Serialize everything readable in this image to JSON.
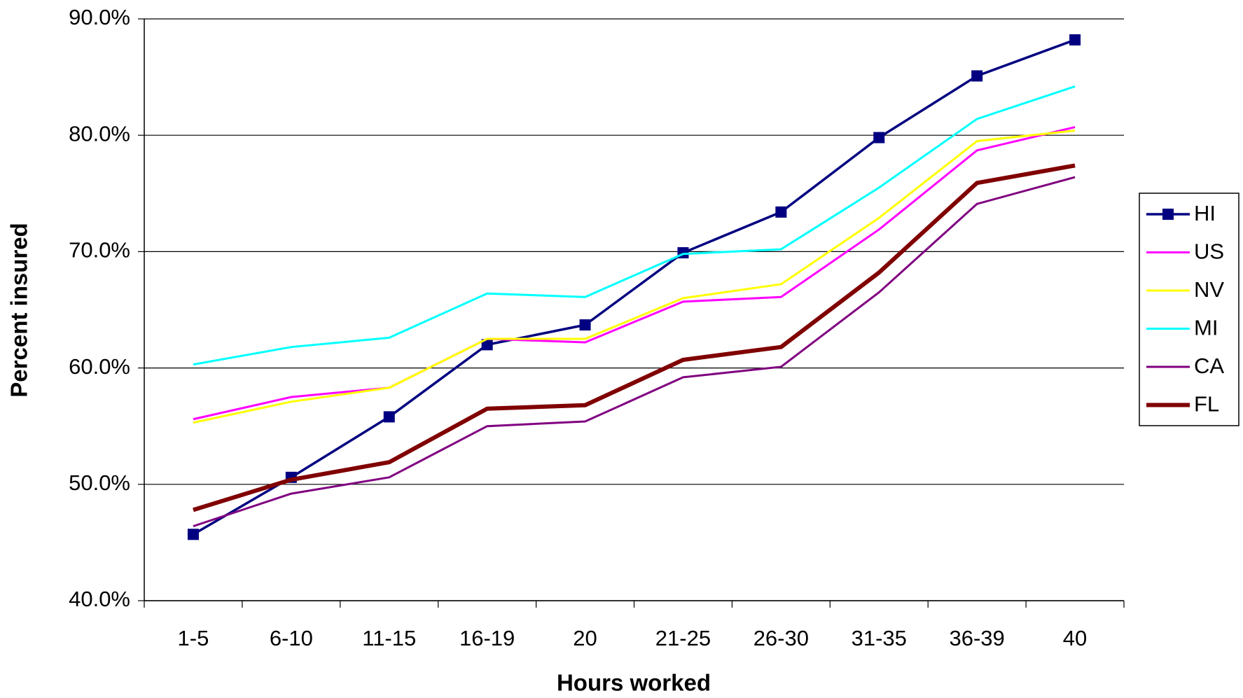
{
  "chart_data": {
    "type": "line",
    "x_label": "Hours worked",
    "y_label": "Percent insured",
    "categories": [
      "1-5",
      "6-10",
      "11-15",
      "16-19",
      "20",
      "21-25",
      "26-30",
      "31-35",
      "36-39",
      "40"
    ],
    "series": [
      {
        "name": "HI",
        "color": "#000080",
        "marker": "square",
        "values": [
          45.7,
          50.6,
          55.8,
          62.0,
          63.7,
          69.9,
          73.4,
          79.8,
          85.1,
          88.2
        ]
      },
      {
        "name": "US",
        "color": "#ff00ff",
        "values": [
          55.6,
          57.5,
          58.3,
          62.5,
          62.2,
          65.7,
          66.1,
          71.9,
          78.7,
          80.7
        ]
      },
      {
        "name": "NV",
        "color": "#ffff00",
        "values": [
          55.3,
          57.1,
          58.3,
          62.5,
          62.5,
          66.0,
          67.2,
          72.9,
          79.5,
          80.4
        ]
      },
      {
        "name": "MI",
        "color": "#00ffff",
        "values": [
          60.3,
          61.8,
          62.6,
          66.4,
          66.1,
          69.8,
          70.2,
          75.5,
          81.4,
          84.2
        ]
      },
      {
        "name": "CA",
        "color": "#800080",
        "values": [
          46.4,
          49.2,
          50.6,
          55.0,
          55.4,
          59.2,
          60.1,
          66.5,
          74.1,
          76.4
        ]
      },
      {
        "name": "FL",
        "color": "#800000",
        "values": [
          47.8,
          50.4,
          51.9,
          56.5,
          56.8,
          60.7,
          61.8,
          68.2,
          75.9,
          77.4
        ]
      }
    ],
    "ylim": [
      40,
      90
    ],
    "yticks": [
      {
        "value": 40,
        "label": "40.0%"
      },
      {
        "value": 50,
        "label": "50.0%"
      },
      {
        "value": 60,
        "label": "60.0%"
      },
      {
        "value": 70,
        "label": "70.0%"
      },
      {
        "value": 80,
        "label": "80.0%"
      },
      {
        "value": 90,
        "label": "90.0%"
      }
    ],
    "grid": true,
    "legend": "right"
  }
}
